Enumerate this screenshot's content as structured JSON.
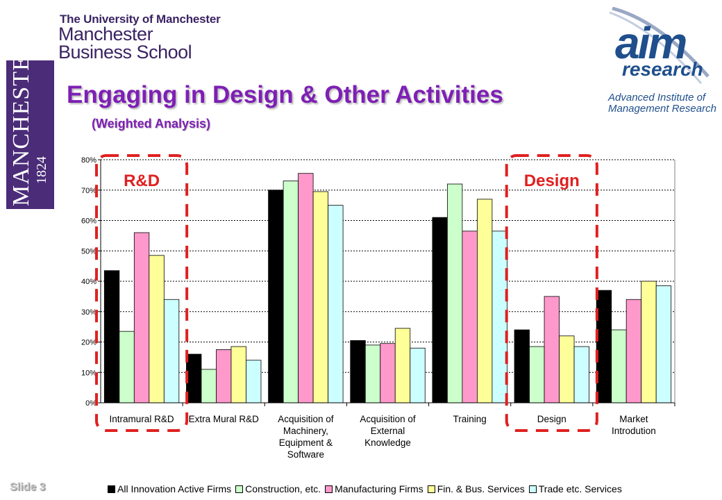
{
  "header": {
    "university": "The University of Manchester",
    "school_line1": "Manchester",
    "school_line2": "Business School",
    "purple_word": "MANCHESTER",
    "purple_year": "1824",
    "title": "Engaging in Design & Other Activities",
    "subtitle": "(Weighted Analysis)"
  },
  "aim_logo": {
    "main": "aim",
    "research": "research",
    "tag_line1": "Advanced Institute of",
    "tag_line2": "Management Research"
  },
  "footer": {
    "slide_label": "Slide 3"
  },
  "annotations": {
    "rd_label": "R&D",
    "design_label": "Design",
    "highlight_color": "#e02020"
  },
  "chart_data": {
    "type": "bar",
    "title": "",
    "xlabel": "",
    "ylabel": "",
    "ylim": [
      0,
      80
    ],
    "yticks": [
      "0%",
      "10%",
      "20%",
      "30%",
      "40%",
      "50%",
      "60%",
      "70%",
      "80%"
    ],
    "grid": true,
    "legend_position": "bottom",
    "categories": [
      [
        "Intramural R&D"
      ],
      [
        "Extra Mural R&D"
      ],
      [
        "Acquisition of",
        "Machinery,",
        "Equipment &",
        "Software"
      ],
      [
        "Acquisition of",
        "External",
        "Knowledge"
      ],
      [
        "Training"
      ],
      [
        "Design"
      ],
      [
        "Market",
        "Introdution"
      ]
    ],
    "series": [
      {
        "name": "All Innovation Active Firms",
        "color": "#000000",
        "values": [
          43.5,
          16,
          70,
          20.5,
          61,
          24,
          37
        ]
      },
      {
        "name": "Construction, etc.",
        "color": "#ccffcc",
        "values": [
          23.5,
          11,
          73,
          19,
          72,
          18.5,
          24
        ]
      },
      {
        "name": "Manufacturing Firms",
        "color": "#ff99cc",
        "values": [
          56,
          17.5,
          75.5,
          19.5,
          56.5,
          35,
          34
        ]
      },
      {
        "name": "Fin. & Bus. Services",
        "color": "#ffff99",
        "values": [
          48.5,
          18.5,
          69.5,
          24.5,
          67,
          22,
          40
        ]
      },
      {
        "name": "Trade etc. Services",
        "color": "#ccffff",
        "values": [
          34,
          14,
          65,
          18,
          56.5,
          18.5,
          38.5
        ]
      }
    ]
  }
}
